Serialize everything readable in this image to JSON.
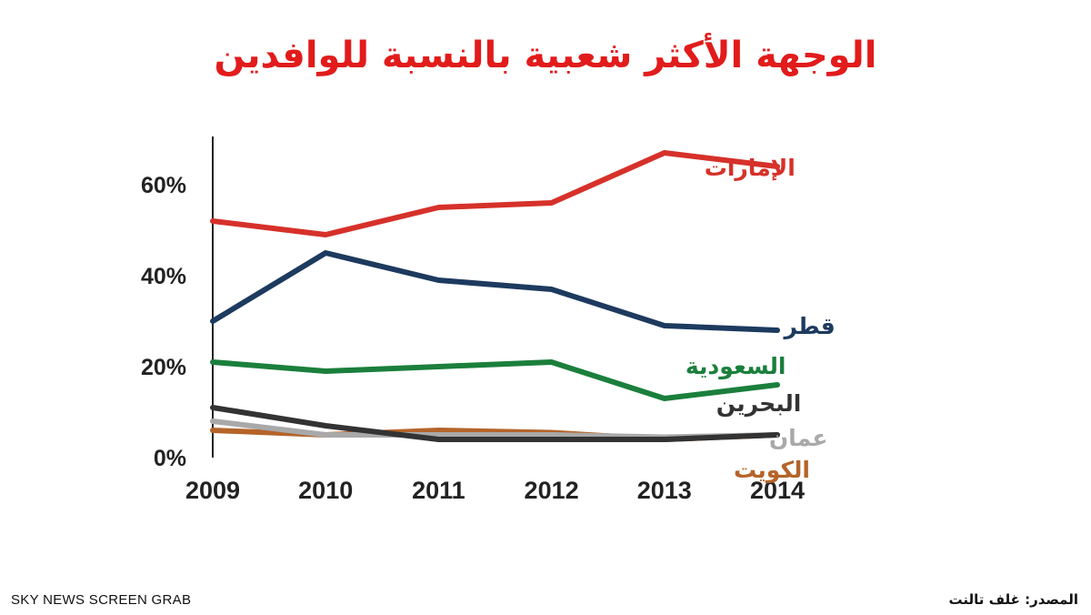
{
  "chart_data": {
    "type": "line",
    "title": "الوجهة الأكثر شعبية بالنسبة للوافدين",
    "x": [
      "2009",
      "2010",
      "2011",
      "2012",
      "2013",
      "2014"
    ],
    "yticks": [
      "0%",
      "20%",
      "40%",
      "60%"
    ],
    "ylim": [
      0,
      70
    ],
    "grid": false,
    "legend_placement": "right",
    "series": [
      {
        "name": "الإمارات",
        "color": "#d6312a",
        "values": [
          52,
          49,
          55,
          56,
          67,
          64
        ]
      },
      {
        "name": "قطر",
        "color": "#1d3a5f",
        "values": [
          30,
          45,
          39,
          37,
          29,
          28
        ]
      },
      {
        "name": "السعودية",
        "color": "#1b7f3c",
        "values": [
          21,
          19,
          20,
          21,
          13,
          16
        ]
      },
      {
        "name": "البحرين",
        "color": "#333333",
        "values": [
          11,
          7,
          4,
          4,
          4,
          5
        ]
      },
      {
        "name": "عمان",
        "color": "#a9a9a9",
        "values": [
          8,
          5,
          5,
          5,
          4.5,
          5
        ]
      },
      {
        "name": "الكويت",
        "color": "#b5642a",
        "values": [
          6,
          5,
          6,
          5.5,
          4,
          5
        ]
      }
    ]
  },
  "footer": {
    "credit": "SKY NEWS SCREEN GRAB",
    "source": "المصدر: غلف تالنت"
  }
}
